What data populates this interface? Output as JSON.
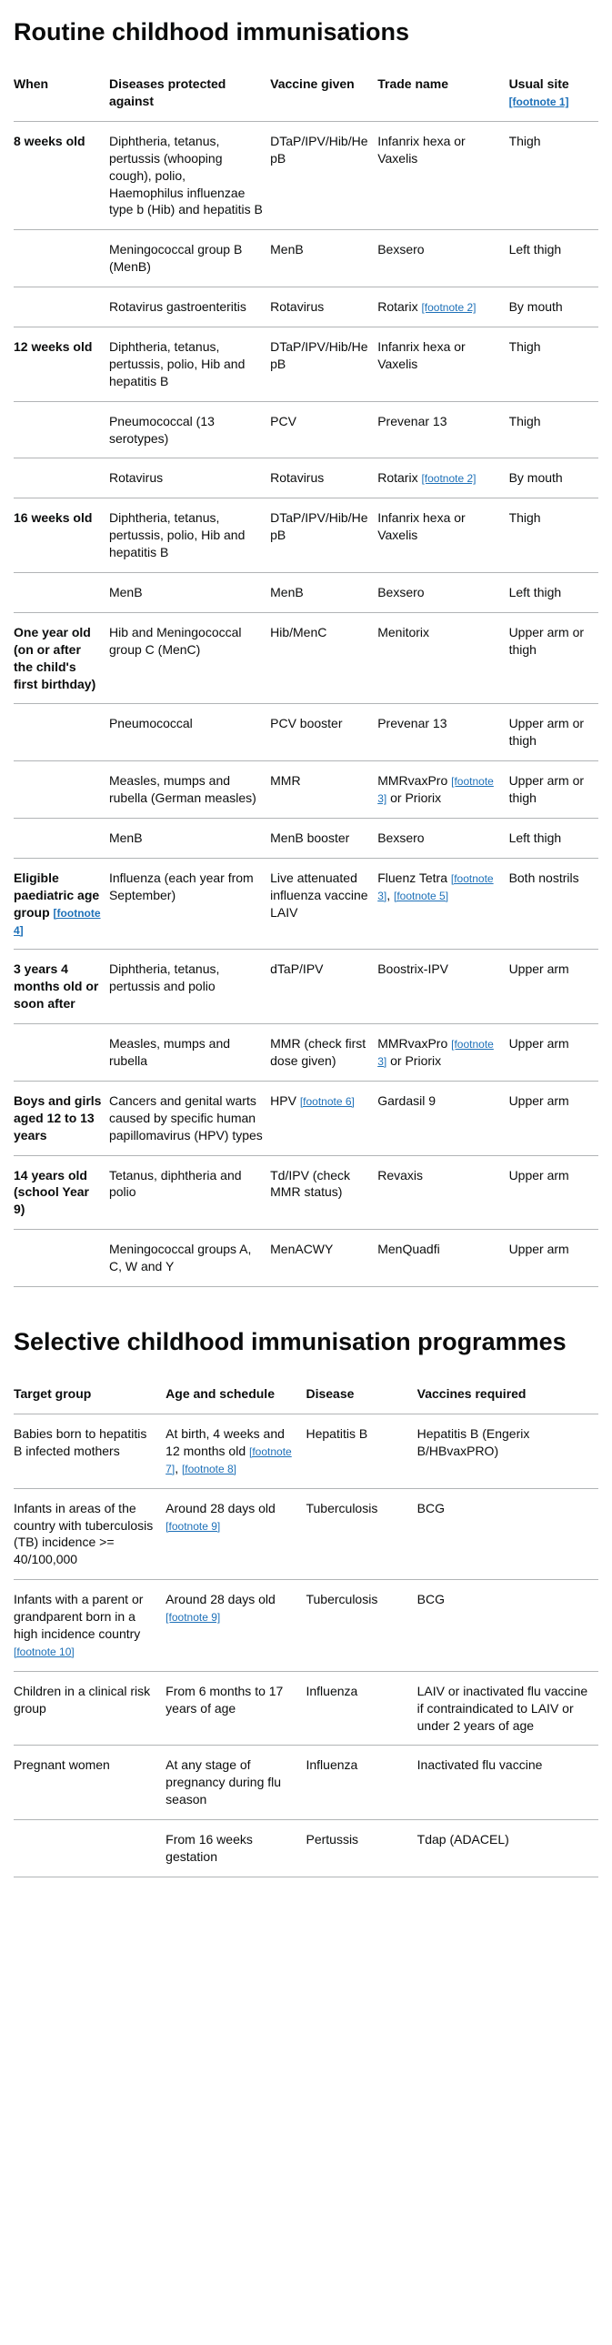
{
  "routine": {
    "title": "Routine childhood immunisations",
    "headers": {
      "when": "When",
      "diseases": "Diseases protected against",
      "vaccine": "Vaccine given",
      "trade": "Trade name",
      "site": "Usual site",
      "site_fn": "[footnote 1]"
    },
    "rows": [
      {
        "when": "8 weeks old",
        "diseases": "Diphtheria, tetanus, pertussis (whooping cough), polio, Haemophilus influenzae type b (Hib) and hepatitis B",
        "vaccine": "DTaP/IPV/Hib/HepB",
        "trade": "Infanrix hexa or Vaxelis",
        "site": "Thigh"
      },
      {
        "when": "",
        "diseases": "Meningococcal group B (MenB)",
        "vaccine": "MenB",
        "trade": "Bexsero",
        "site": "Left thigh"
      },
      {
        "when": "",
        "diseases": "Rotavirus gastroenteritis",
        "vaccine": "Rotavirus",
        "trade_pre": "Rotarix ",
        "trade_fn": "[footnote 2]",
        "site": "By mouth"
      },
      {
        "when": "12 weeks old",
        "diseases": "Diphtheria, tetanus, pertussis, polio, Hib and hepatitis B",
        "vaccine": "DTaP/IPV/Hib/HepB",
        "trade": "Infanrix hexa or Vaxelis",
        "site": "Thigh"
      },
      {
        "when": "",
        "diseases": "Pneumococcal (13 serotypes)",
        "vaccine": "PCV",
        "trade": "Prevenar 13",
        "site": "Thigh"
      },
      {
        "when": "",
        "diseases": "Rotavirus",
        "vaccine": "Rotavirus",
        "trade_pre": "Rotarix ",
        "trade_fn": "[footnote 2]",
        "site": "By mouth"
      },
      {
        "when": "16 weeks old",
        "diseases": "Diphtheria, tetanus, pertussis, polio, Hib and hepatitis B",
        "vaccine": "DTaP/IPV/Hib/HepB",
        "trade": "Infanrix hexa or Vaxelis",
        "site": "Thigh"
      },
      {
        "when": "",
        "diseases": "MenB",
        "vaccine": "MenB",
        "trade": "Bexsero",
        "site": "Left thigh"
      },
      {
        "when": "One year old (on or after the child's first birthday)",
        "diseases": "Hib and Meningococcal group C (MenC)",
        "vaccine": "Hib/MenC",
        "trade": "Menitorix",
        "site": "Upper arm or thigh"
      },
      {
        "when": "",
        "diseases": "Pneumococcal",
        "vaccine": "PCV booster",
        "trade": "Prevenar 13",
        "site": "Upper arm or thigh"
      },
      {
        "when": "",
        "diseases": "Measles, mumps and rubella (German measles)",
        "vaccine": "MMR",
        "trade_pre": "MMRvaxPro ",
        "trade_fn": "[footnote 3]",
        "trade_post": " or Priorix",
        "site": "Upper arm or thigh"
      },
      {
        "when": "",
        "diseases": "MenB",
        "vaccine": "MenB booster",
        "trade": "Bexsero",
        "site": "Left thigh"
      },
      {
        "when_pre": "Eligible paediatric age group ",
        "when_fn": "[footnote 4]",
        "diseases": "Influenza (each year from September)",
        "vaccine": "Live attenuated influenza vaccine LAIV",
        "trade_pre": "Fluenz Tetra ",
        "trade_fn": "[footnote 3]",
        "trade_mid": ", ",
        "trade_fn2": "[footnote 5]",
        "site": "Both nostrils"
      },
      {
        "when": "3 years 4 months old or soon after",
        "diseases": "Diphtheria, tetanus, pertussis and polio",
        "vaccine": "dTaP/IPV",
        "trade": "Boostrix-IPV",
        "site": "Upper arm"
      },
      {
        "when": "",
        "diseases": "Measles, mumps and rubella",
        "vaccine": "MMR (check first dose given)",
        "trade_pre": "MMRvaxPro ",
        "trade_fn": "[footnote 3]",
        "trade_post": " or Priorix",
        "site": "Upper arm"
      },
      {
        "when": "Boys and girls aged 12 to 13 years",
        "diseases": "Cancers and genital warts caused by specific human papillomavirus (HPV) types",
        "vaccine_pre": "HPV ",
        "vaccine_fn": "[footnote 6]",
        "trade": "Gardasil 9",
        "site": "Upper arm"
      },
      {
        "when": "14 years old (school Year 9)",
        "diseases": "Tetanus, diphtheria and polio",
        "vaccine": "Td/IPV (check MMR status)",
        "trade": "Revaxis",
        "site": "Upper arm"
      },
      {
        "when": "",
        "diseases": "Meningococcal groups A, C, W and Y",
        "vaccine": "MenACWY",
        "trade": "MenQuadfi",
        "site": "Upper arm"
      }
    ]
  },
  "selective": {
    "title": "Selective childhood immunisation programmes",
    "headers": {
      "target": "Target group",
      "age": "Age and schedule",
      "disease": "Disease",
      "vaccines": "Vaccines required"
    },
    "rows": [
      {
        "target": "Babies born to hepatitis B infected mothers",
        "age_pre": "At birth, 4 weeks and 12 months old ",
        "age_fn": "[footnote 7]",
        "age_mid": ", ",
        "age_fn2": "[footnote 8]",
        "disease": "Hepatitis B",
        "vaccines": "Hepatitis B (Engerix B/HBvaxPRO)"
      },
      {
        "target": "Infants in areas of the country with tuberculosis (TB) incidence >= 40/100,000",
        "age_pre": "Around 28 days old ",
        "age_fn": "[footnote 9]",
        "disease": "Tuberculosis",
        "vaccines": "BCG"
      },
      {
        "target_pre": "Infants with a parent or grandparent born in a high incidence country ",
        "target_fn": "[footnote 10]",
        "age_pre": "Around 28 days old ",
        "age_fn": "[footnote 9]",
        "disease": "Tuberculosis",
        "vaccines": "BCG"
      },
      {
        "target": "Children in a clinical risk group",
        "age": "From 6 months to 17 years of age",
        "disease": "Influenza",
        "vaccines": "LAIV or inactivated flu vaccine if contraindicated to LAIV or under 2 years of age"
      },
      {
        "target": "Pregnant women",
        "age": "At any stage of pregnancy during flu season",
        "disease": "Influenza",
        "vaccines": "Inactivated flu vaccine"
      },
      {
        "target": "",
        "age": "From 16 weeks gestation",
        "disease": "Pertussis",
        "vaccines": "Tdap (ADACEL)"
      }
    ]
  }
}
